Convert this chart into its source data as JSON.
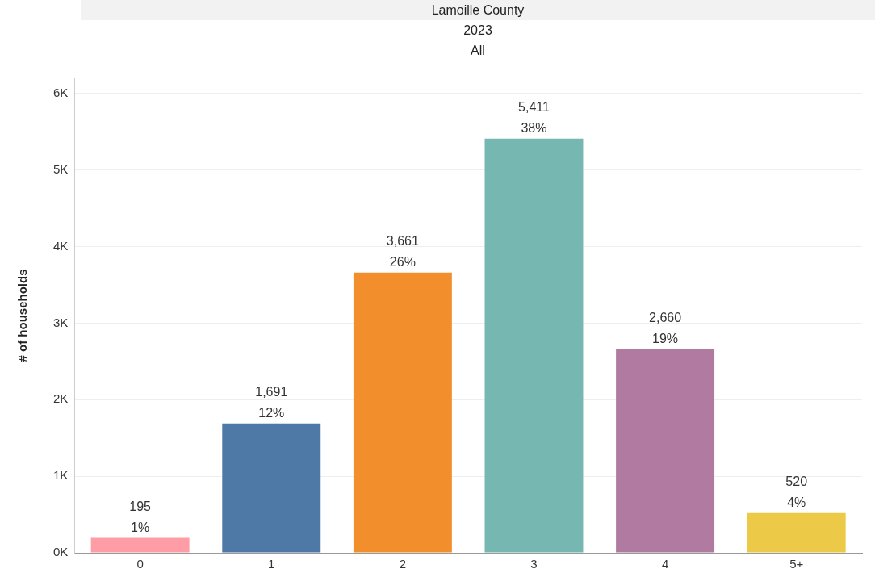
{
  "chart_data": {
    "type": "bar",
    "title": "Lamoille County",
    "subtitle": "2023",
    "annotations": [
      "All"
    ],
    "ylabel": "# of households",
    "categories": [
      "0",
      "1",
      "2",
      "3",
      "4",
      "5+"
    ],
    "values": [
      195,
      1691,
      3661,
      5411,
      2660,
      520
    ],
    "colors": [
      "#ff9da7",
      "#4e79a7",
      "#f28e2b",
      "#76b7b2",
      "#b07aa1",
      "#edc948"
    ],
    "value_labels": [
      "195\n1%",
      "1,691\n12%",
      "3,661\n26%",
      "5,411\n38%",
      "2,660\n19%",
      "520\n4%"
    ],
    "ylim": [
      0,
      6200
    ],
    "yticks": [
      {
        "value": 0,
        "label": "0K"
      },
      {
        "value": 1000,
        "label": "1K"
      },
      {
        "value": 2000,
        "label": "2K"
      },
      {
        "value": 3000,
        "label": "3K"
      },
      {
        "value": 4000,
        "label": "4K"
      },
      {
        "value": 5000,
        "label": "5K"
      },
      {
        "value": 6000,
        "label": "6K"
      }
    ],
    "grid": "y",
    "legend": false
  }
}
